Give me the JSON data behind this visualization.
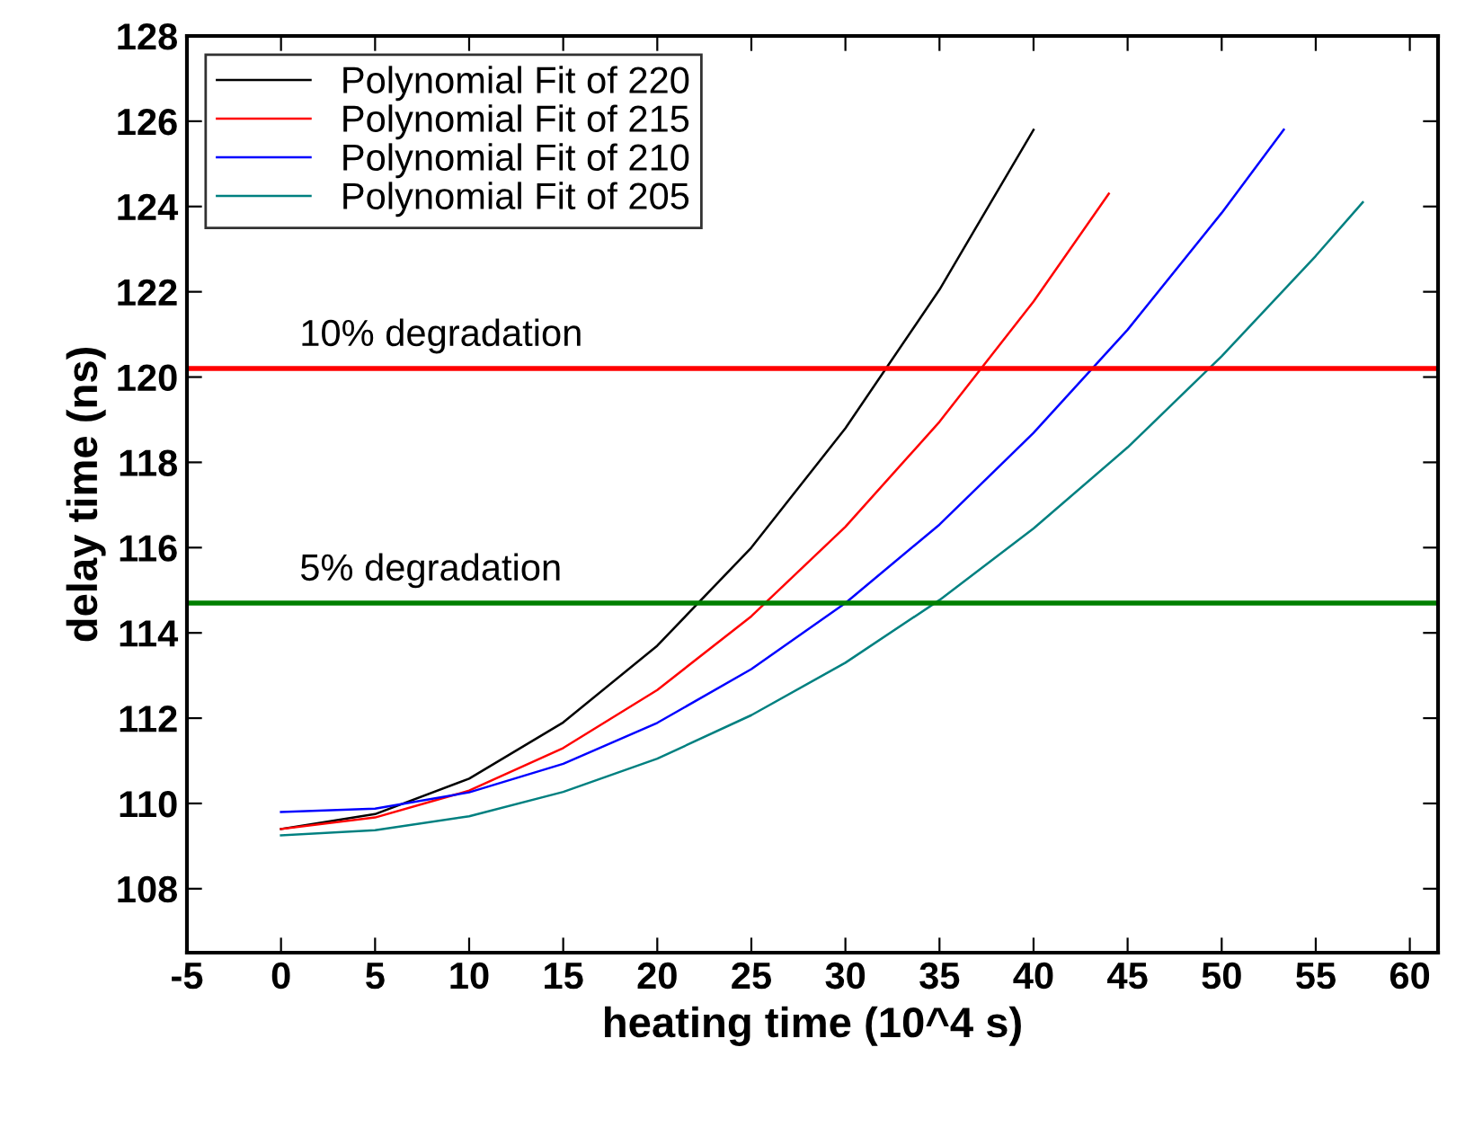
{
  "chart_data": {
    "type": "line",
    "xlabel": "heating time (10^4 s)",
    "ylabel": "delay time (ns)",
    "xlim": [
      -5,
      61.5
    ],
    "ylim": [
      106.5,
      128
    ],
    "xticks": [
      -5,
      0,
      5,
      10,
      15,
      20,
      25,
      30,
      35,
      40,
      45,
      50,
      55,
      60
    ],
    "yticks": [
      108,
      110,
      112,
      114,
      116,
      118,
      120,
      122,
      124,
      126,
      128
    ],
    "legend": "top left",
    "grid": false,
    "series": [
      {
        "name": "Polynomial Fit of 220",
        "color": "#000000",
        "x": [
          0,
          5,
          10,
          15,
          20,
          25,
          30,
          35,
          40
        ],
        "values": [
          109.4,
          109.75,
          110.58,
          111.9,
          113.7,
          116.0,
          118.8,
          122.05,
          125.8
        ]
      },
      {
        "name": "Polynomial Fit of 215",
        "color": "#ff0000",
        "x": [
          0,
          5,
          10,
          15,
          20,
          25,
          30,
          35,
          40,
          44
        ],
        "values": [
          109.4,
          109.67,
          110.3,
          111.3,
          112.66,
          114.39,
          116.49,
          118.95,
          121.77,
          124.3
        ]
      },
      {
        "name": "Polynomial Fit of 210",
        "color": "#0000ff",
        "x": [
          0,
          5,
          10,
          15,
          20,
          25,
          30,
          35,
          40,
          45,
          50,
          53.3
        ],
        "values": [
          109.8,
          109.88,
          110.26,
          110.93,
          111.89,
          113.15,
          114.7,
          116.54,
          118.69,
          121.11,
          123.85,
          125.8
        ]
      },
      {
        "name": "Polynomial Fit of 205",
        "color": "#008080",
        "x": [
          0,
          5,
          10,
          15,
          20,
          25,
          30,
          35,
          40,
          45,
          50,
          55,
          57.5
        ],
        "values": [
          109.25,
          109.37,
          109.7,
          110.27,
          111.05,
          112.07,
          113.3,
          114.77,
          116.45,
          118.35,
          120.49,
          122.84,
          124.1
        ]
      }
    ],
    "ref_lines": [
      {
        "axis": "y",
        "value": 120.2,
        "label": "10% degradation",
        "color": "#ff0000"
      },
      {
        "axis": "y",
        "value": 114.7,
        "label": "5% degradation",
        "color": "#007f00"
      }
    ]
  }
}
